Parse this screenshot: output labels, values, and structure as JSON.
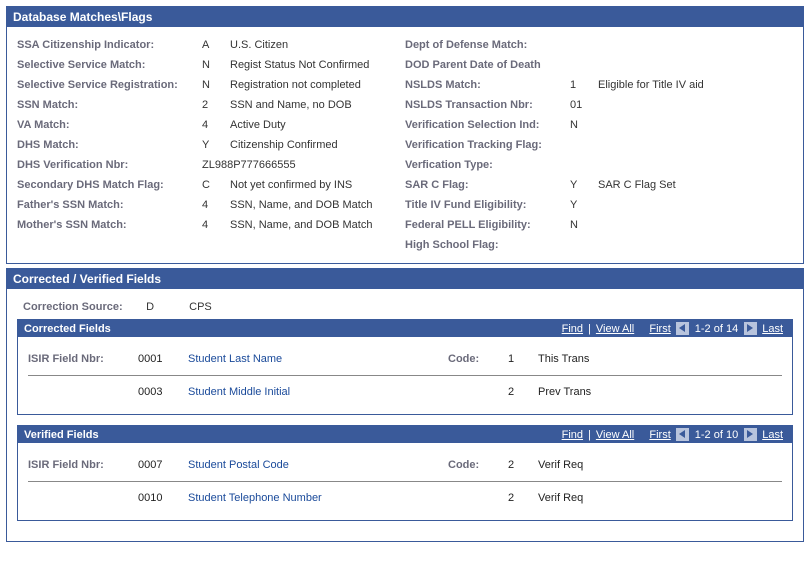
{
  "dbmatches": {
    "title": "Database Matches\\Flags",
    "left": [
      {
        "label": "SSA Citizenship Indicator:",
        "code": "A",
        "desc": "U.S. Citizen"
      },
      {
        "label": "Selective Service Match:",
        "code": "N",
        "desc": "Regist Status Not Confirmed"
      },
      {
        "label": "Selective Service Registration:",
        "code": "N",
        "desc": "Registration not completed"
      },
      {
        "label": "SSN Match:",
        "code": "2",
        "desc": "SSN and Name, no DOB"
      },
      {
        "label": "VA Match:",
        "code": "4",
        "desc": "Active Duty"
      },
      {
        "label": "DHS Match:",
        "code": "Y",
        "desc": "Citizenship Confirmed"
      },
      {
        "label": "DHS Verification Nbr:",
        "code": "",
        "desc": "ZL988P777666555"
      },
      {
        "label": "Secondary DHS Match Flag:",
        "code": "C",
        "desc": "Not yet confirmed by INS"
      },
      {
        "label": "Father's SSN Match:",
        "code": "4",
        "desc": "SSN, Name, and DOB Match"
      },
      {
        "label": "Mother's SSN Match:",
        "code": "4",
        "desc": "SSN, Name, and DOB Match"
      }
    ],
    "right": [
      {
        "label": "Dept of Defense Match:",
        "code": "",
        "desc": ""
      },
      {
        "label": "DOD Parent Date of Death",
        "code": "",
        "desc": ""
      },
      {
        "label": "NSLDS Match:",
        "code": "1",
        "desc": "Eligible for Title IV aid"
      },
      {
        "label": "NSLDS Transaction Nbr:",
        "code": "01",
        "desc": ""
      },
      {
        "label": "Verification Selection Ind:",
        "code": "N",
        "desc": ""
      },
      {
        "label": "Verification Tracking Flag:",
        "code": "",
        "desc": ""
      },
      {
        "label": "Verfication Type:",
        "code": "",
        "desc": ""
      },
      {
        "label": "SAR C Flag:",
        "code": "Y",
        "desc": "SAR C Flag Set"
      },
      {
        "label": "Title IV Fund Eligibility:",
        "code": "Y",
        "desc": ""
      },
      {
        "label": "Federal PELL Eligibility:",
        "code": "N",
        "desc": ""
      },
      {
        "label": "High School Flag:",
        "code": "",
        "desc": ""
      }
    ]
  },
  "cv": {
    "title": "Corrected / Verified Fields",
    "source_label": "Correction Source:",
    "source_code": "D",
    "source_desc": "CPS",
    "corrected": {
      "title": "Corrected Fields",
      "find": "Find",
      "viewall": "View All",
      "first": "First",
      "range": "1-2 of 14",
      "last": "Last",
      "field_label": "ISIR Field Nbr:",
      "code_label": "Code:",
      "rows": [
        {
          "nbr": "0001",
          "name": "Student Last Name",
          "code": "1",
          "codedesc": "This Trans"
        },
        {
          "nbr": "0003",
          "name": "Student Middle Initial",
          "code": "2",
          "codedesc": "Prev Trans"
        }
      ]
    },
    "verified": {
      "title": "Verified Fields",
      "find": "Find",
      "viewall": "View All",
      "first": "First",
      "range": "1-2 of 10",
      "last": "Last",
      "field_label": "ISIR Field Nbr:",
      "code_label": "Code:",
      "rows": [
        {
          "nbr": "0007",
          "name": "Student Postal Code",
          "code": "2",
          "codedesc": "Verif Req"
        },
        {
          "nbr": "0010",
          "name": "Student Telephone Number",
          "code": "2",
          "codedesc": "Verif Req"
        }
      ]
    }
  }
}
